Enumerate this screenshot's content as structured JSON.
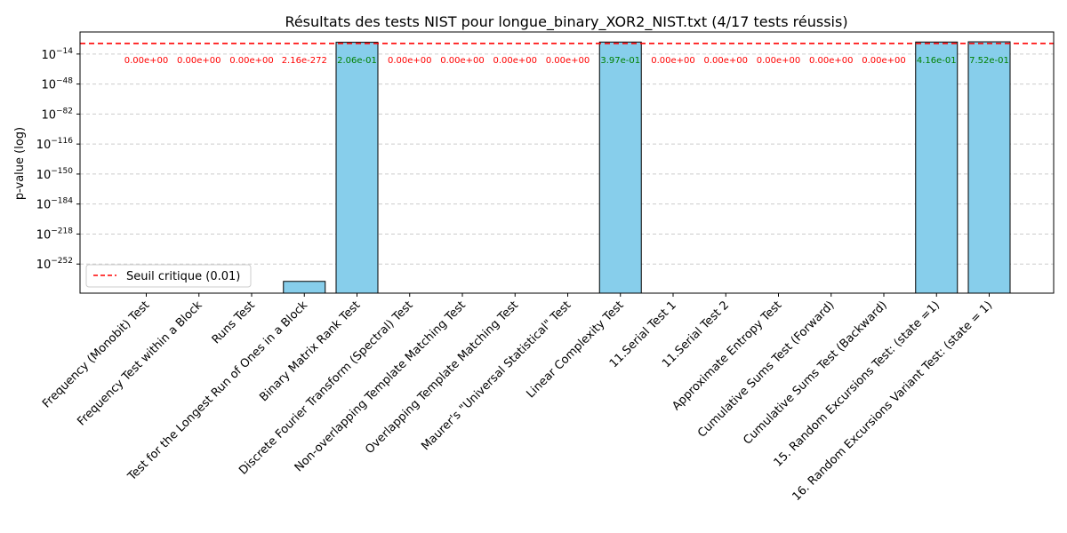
{
  "chart_data": {
    "type": "bar",
    "title": "Résultats des tests NIST pour longue_binary_XOR2_NIST.txt (4/17 tests réussis)",
    "xlabel": "",
    "ylabel": "p-value (log)",
    "scale": "log",
    "ylim_exponent": [
      -285,
      11
    ],
    "yticks_exponent": [
      -252,
      -218,
      -184,
      -150,
      -116,
      -82,
      -48,
      -14
    ],
    "categories": [
      "Frequency (Monobit) Test",
      "Frequency Test within a Block",
      "Runs Test",
      "Test for the Longest Run of Ones in a Block",
      "Binary Matrix Rank Test",
      "Discrete Fourier Transform (Spectral) Test",
      "Non-overlapping Template Matching Test",
      "Overlapping Template Matching Test",
      "Maurer's \"Universal Statistical\" Test",
      "Linear Complexity Test",
      "11.Serial Test 1",
      "11.Serial Test 2",
      "Approximate Entropy Test",
      "Cumulative Sums Test (Forward)",
      "Cumulative Sums Test (Backward)",
      "15. Random Excursions Test: (state =1)",
      "16. Random Excursions Variant Test: (state = 1)"
    ],
    "values": [
      0,
      0,
      0,
      2.16e-272,
      0.206,
      0,
      0,
      0,
      0,
      0.397,
      0,
      0,
      0,
      0,
      0,
      0.416,
      0.752
    ],
    "value_labels": [
      "0.00e+00",
      "0.00e+00",
      "0.00e+00",
      "2.16e-272",
      "2.06e-01",
      "0.00e+00",
      "0.00e+00",
      "0.00e+00",
      "0.00e+00",
      "3.97e-01",
      "0.00e+00",
      "0.00e+00",
      "0.00e+00",
      "0.00e+00",
      "0.00e+00",
      "4.16e-01",
      "7.52e-01"
    ],
    "passed": [
      false,
      false,
      false,
      false,
      true,
      false,
      false,
      false,
      false,
      true,
      false,
      false,
      false,
      false,
      false,
      true,
      true
    ],
    "threshold": {
      "value": 0.01,
      "label": "Seuil critique (0.01)",
      "color": "#ff0000"
    },
    "bar_color": "#87ceeb",
    "pass_label_color": "#008000",
    "fail_label_color": "#ff0000",
    "grid": "y-dashed",
    "legend_position": "lower-left"
  }
}
